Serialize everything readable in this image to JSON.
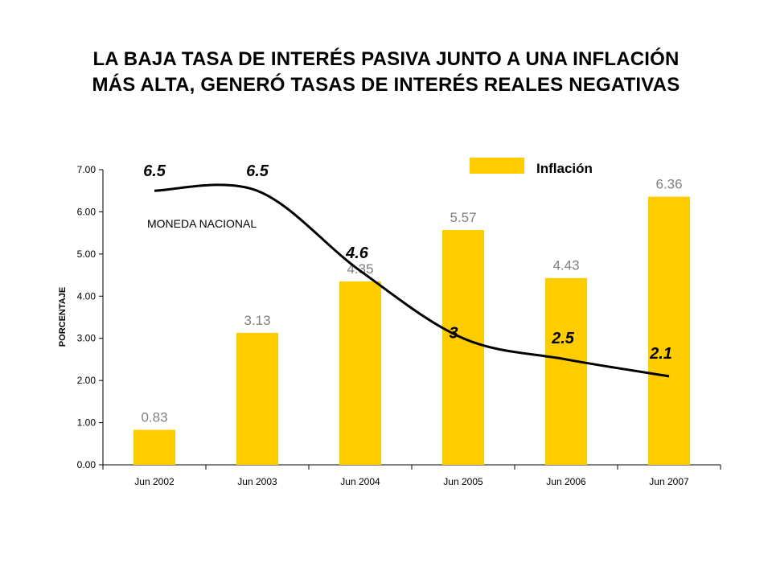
{
  "title_line1": "LA BAJA TASA DE INTERÉS PASIVA JUNTO A UNA INFLACIÓN",
  "title_line2": "MÁS ALTA, GENERÓ TASAS DE INTERÉS REALES NEGATIVAS",
  "colors": {
    "bar": "#FFCC00",
    "line": "#000000",
    "bar_label": "#808080"
  },
  "chart_data": {
    "type": "bar",
    "title": "LA BAJA TASA DE INTERÉS PASIVA JUNTO A UNA INFLACIÓN MÁS ALTA, GENERÓ TASAS DE INTERÉS REALES NEGATIVAS",
    "categories": [
      "Jun 2002",
      "Jun 2003",
      "Jun 2004",
      "Jun 2005",
      "Jun 2006",
      "Jun 2007"
    ],
    "ylabel": "PORCENTAJE",
    "xlabel": "",
    "ylim": [
      0,
      7
    ],
    "yticks": [
      "0.00",
      "1.00",
      "2.00",
      "3.00",
      "4.00",
      "5.00",
      "6.00",
      "7.00"
    ],
    "grid": false,
    "legend_position": "top-right",
    "series": [
      {
        "name": "Inflación",
        "type": "bar",
        "values": [
          0.83,
          3.13,
          4.35,
          5.57,
          4.43,
          6.36
        ],
        "labels": [
          "0.83",
          "3.13",
          "4.35",
          "5.57",
          "4.43",
          "6.36"
        ]
      },
      {
        "name": "MONEDA NACIONAL",
        "type": "line",
        "smooth": true,
        "values": [
          6.5,
          6.5,
          4.6,
          3,
          2.5,
          2.1
        ],
        "labels": [
          "6.5",
          "6.5",
          "4.6",
          "3",
          "2.5",
          "2.1"
        ]
      }
    ]
  }
}
